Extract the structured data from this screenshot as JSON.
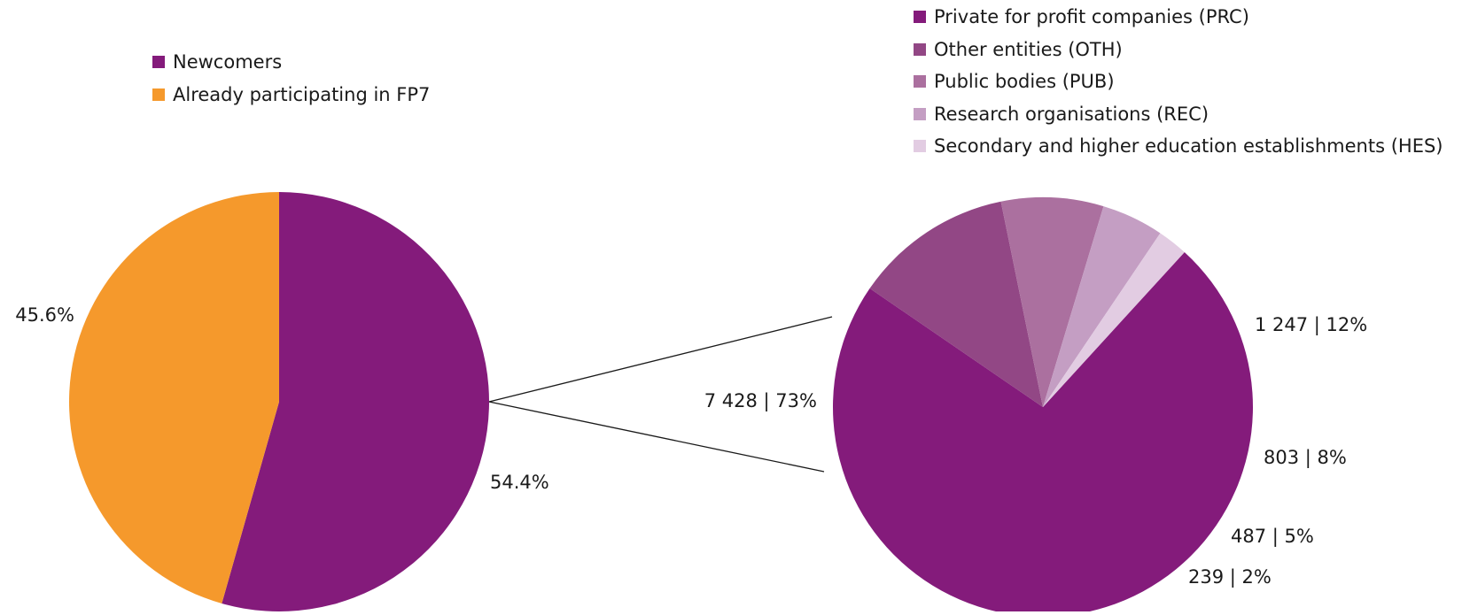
{
  "chart_data": [
    {
      "type": "pie",
      "legend_position": "top-left",
      "slices": [
        {
          "name": "Newcomers",
          "value": 54.4,
          "label": "54.4%",
          "color": "#841b7b"
        },
        {
          "name": "Already participating in FP7",
          "value": 45.6,
          "label": "45.6%",
          "color": "#f5992c"
        }
      ]
    },
    {
      "type": "pie",
      "legend_position": "top-right",
      "slices": [
        {
          "name": "Private for profit companies (PRC)",
          "value": 7428,
          "percent": 73,
          "label": "7 428 | 73%",
          "color": "#841b7b"
        },
        {
          "name": "Other entities (OTH)",
          "value": 1247,
          "percent": 12,
          "label": "1 247 | 12%",
          "color": "#924785"
        },
        {
          "name": "Public bodies (PUB)",
          "value": 803,
          "percent": 8,
          "label": "803 | 8%",
          "color": "#ab709f"
        },
        {
          "name": "Research organisations (REC)",
          "value": 487,
          "percent": 5,
          "label": "487 | 5%",
          "color": "#c49ec3"
        },
        {
          "name": "Secondary and higher education establishments (HES)",
          "value": 239,
          "percent": 2,
          "label": "239 | 2%",
          "color": "#e2cce2"
        }
      ]
    }
  ]
}
